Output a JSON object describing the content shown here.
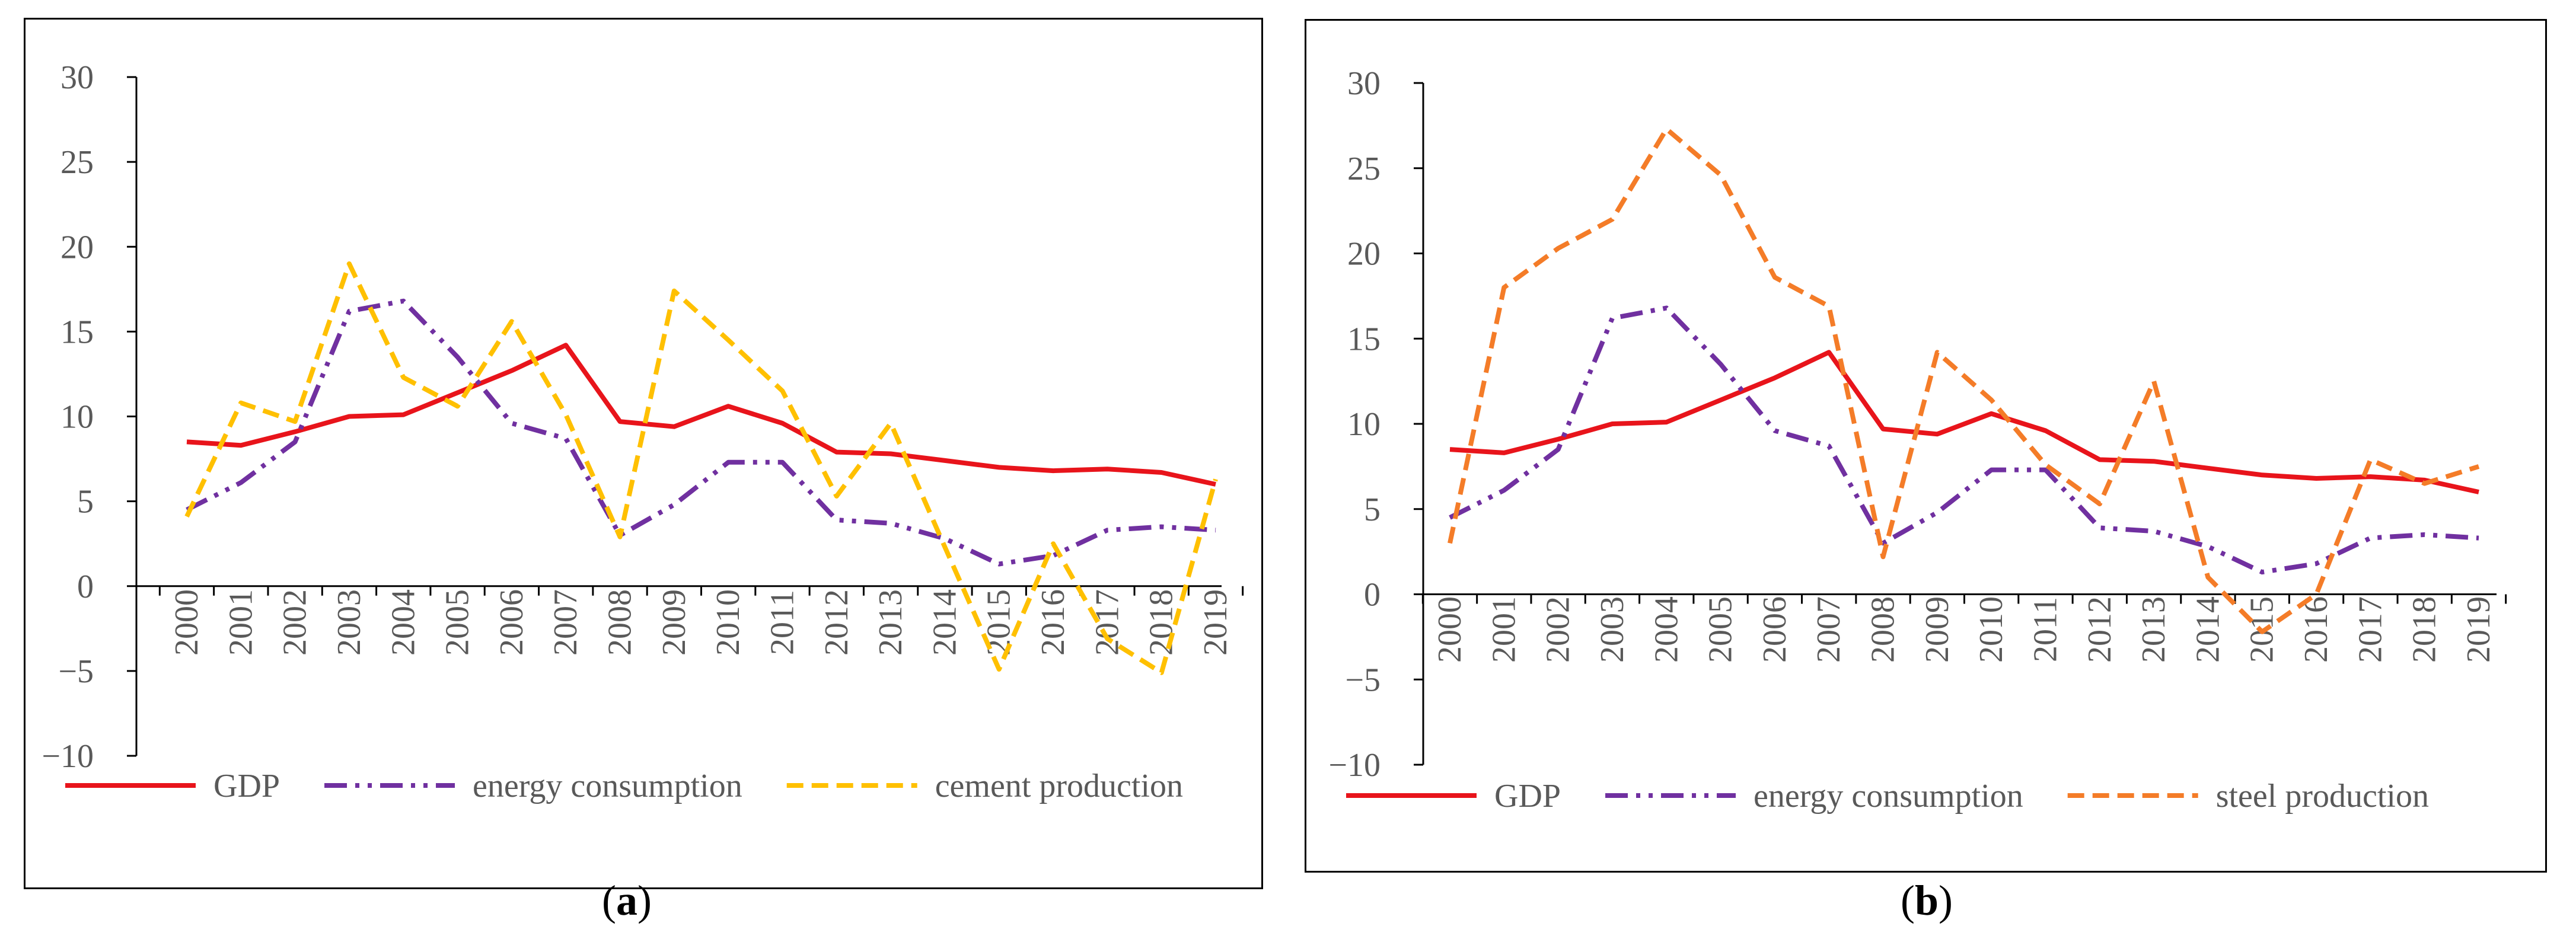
{
  "colors": {
    "gdp": "#e8141b",
    "energy": "#7030a0",
    "cement": "#ffc000",
    "steel": "#f47c28",
    "axis": "#000000",
    "text": "#595959"
  },
  "chart_data": [
    {
      "type": "line",
      "caption_letter": "a",
      "x": [
        "2000",
        "2001",
        "2002",
        "2003",
        "2004",
        "2005",
        "2006",
        "2007",
        "2008",
        "2009",
        "2010",
        "2011",
        "2012",
        "2013",
        "2014",
        "2015",
        "2016",
        "2017",
        "2018",
        "2019"
      ],
      "ylim": [
        -10,
        30
      ],
      "yticks": [
        "30",
        "25",
        "20",
        "15",
        "10",
        "5",
        "0",
        "−5",
        "−10"
      ],
      "grid": false,
      "legend_position": "bottom",
      "series": [
        {
          "name": "GDP",
          "style": "solid",
          "color_key": "gdp",
          "values": [
            8.5,
            8.3,
            9.1,
            10.0,
            10.1,
            11.4,
            12.7,
            14.2,
            9.7,
            9.4,
            10.6,
            9.6,
            7.9,
            7.8,
            7.4,
            7.0,
            6.8,
            6.9,
            6.7,
            6.0
          ]
        },
        {
          "name": "energy consumption",
          "style": "dashdotdot",
          "color_key": "energy",
          "values": [
            4.5,
            6.1,
            8.5,
            16.2,
            16.8,
            13.5,
            9.6,
            8.7,
            3.0,
            4.8,
            7.3,
            7.3,
            3.9,
            3.7,
            2.8,
            1.3,
            1.8,
            3.3,
            3.5,
            3.3
          ]
        },
        {
          "name": "cement production",
          "style": "dashed",
          "color_key": "cement",
          "values": [
            4.1,
            10.8,
            9.7,
            19.0,
            12.3,
            10.6,
            15.6,
            10.1,
            2.9,
            17.4,
            14.5,
            11.5,
            5.3,
            9.6,
            2.3,
            -4.9,
            2.5,
            -3.1,
            -5.1,
            6.3
          ]
        }
      ]
    },
    {
      "type": "line",
      "caption_letter": "b",
      "x": [
        "2000",
        "2001",
        "2002",
        "2003",
        "2004",
        "2005",
        "2006",
        "2007",
        "2008",
        "2009",
        "2010",
        "2011",
        "2012",
        "2013",
        "2014",
        "2015",
        "2016",
        "2017",
        "2018",
        "2019"
      ],
      "ylim": [
        -10,
        30
      ],
      "yticks": [
        "30",
        "25",
        "20",
        "15",
        "10",
        "5",
        "0",
        "−5",
        "−10"
      ],
      "grid": false,
      "legend_position": "bottom",
      "series": [
        {
          "name": "GDP",
          "style": "solid",
          "color_key": "gdp",
          "values": [
            8.5,
            8.3,
            9.1,
            10.0,
            10.1,
            11.4,
            12.7,
            14.2,
            9.7,
            9.4,
            10.6,
            9.6,
            7.9,
            7.8,
            7.4,
            7.0,
            6.8,
            6.9,
            6.7,
            6.0
          ]
        },
        {
          "name": "energy consumption",
          "style": "dashdotdot",
          "color_key": "energy",
          "values": [
            4.5,
            6.1,
            8.5,
            16.2,
            16.8,
            13.5,
            9.6,
            8.7,
            3.0,
            4.8,
            7.3,
            7.3,
            3.9,
            3.7,
            2.8,
            1.3,
            1.8,
            3.3,
            3.5,
            3.3
          ]
        },
        {
          "name": "steel production",
          "style": "dashed",
          "color_key": "steel",
          "values": [
            3.0,
            18.0,
            20.3,
            22.0,
            27.3,
            24.6,
            18.6,
            16.9,
            2.2,
            14.2,
            11.4,
            7.6,
            5.3,
            12.5,
            1.0,
            -2.2,
            0.0,
            7.9,
            6.5,
            7.5
          ]
        }
      ]
    }
  ]
}
